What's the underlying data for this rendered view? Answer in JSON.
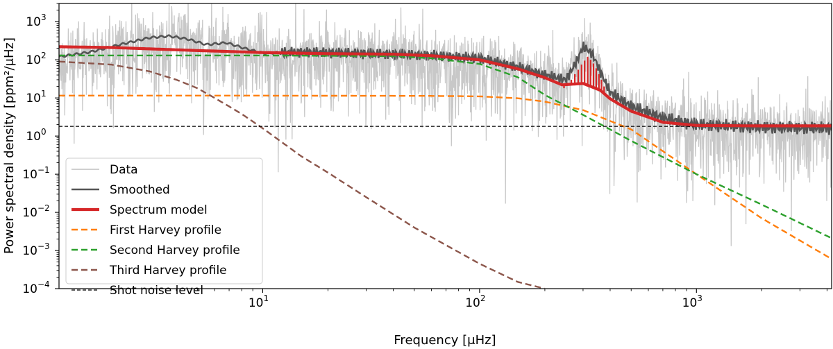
{
  "chart_data": {
    "type": "line",
    "xscale": "log",
    "yscale": "log",
    "xlim": [
      1.15,
      4200
    ],
    "ylim": [
      0.0001,
      3000
    ],
    "xlabel": "Frequency [μHz]",
    "ylabel": "Power spectral density [ppm²/μHz]",
    "x_tick_labels": [
      {
        "value": 10,
        "label": "10",
        "exp": "1"
      },
      {
        "value": 100,
        "label": "10",
        "exp": "2"
      },
      {
        "value": 1000,
        "label": "10",
        "exp": "3"
      }
    ],
    "y_tick_labels": [
      {
        "value": 1000,
        "label": "10",
        "exp": "3"
      },
      {
        "value": 100,
        "label": "10",
        "exp": "2"
      },
      {
        "value": 10,
        "label": "10",
        "exp": "1"
      },
      {
        "value": 1,
        "label": "10",
        "exp": "0"
      },
      {
        "value": 0.1,
        "label": "10",
        "exp": "−1"
      },
      {
        "value": 0.01,
        "label": "10",
        "exp": "−2"
      },
      {
        "value": 0.001,
        "label": "10",
        "exp": "−3"
      },
      {
        "value": 0.0001,
        "label": "10",
        "exp": "−4"
      }
    ],
    "grid": false,
    "legend_position": "lower-left",
    "series": [
      {
        "name": "Data",
        "color": "#c8c8c8",
        "style": "solid",
        "kind": "noisy_data"
      },
      {
        "name": "Smoothed",
        "color": "#555555",
        "style": "solid",
        "x": [
          1.15,
          1.6,
          2.2,
          3.0,
          3.7,
          4.5,
          5.5,
          6.8,
          8.5,
          10,
          15,
          25,
          40,
          60,
          100,
          150,
          200,
          250,
          280,
          300,
          330,
          360,
          400,
          500,
          700,
          1000,
          2000,
          4200
        ],
        "y": [
          120,
          160,
          250,
          380,
          420,
          350,
          250,
          280,
          190,
          150,
          160,
          150,
          140,
          130,
          110,
          65,
          40,
          30,
          90,
          220,
          150,
          50,
          14,
          6,
          3,
          2,
          1.7,
          1.6
        ]
      },
      {
        "name": "Spectrum model",
        "color": "#d62728",
        "style": "solid",
        "x": [
          1.15,
          2,
          5,
          10,
          20,
          40,
          60,
          100,
          150,
          200,
          240,
          300,
          360,
          400,
          500,
          700,
          1000,
          2000,
          4200
        ],
        "y": [
          220,
          210,
          175,
          155,
          145,
          140,
          128,
          100,
          58,
          34,
          22,
          24,
          16,
          9.5,
          4.5,
          2.3,
          1.9,
          1.85,
          1.85
        ],
        "peaks": {
          "x": [
            245,
            255,
            265,
            275,
            285,
            295,
            305,
            315,
            325,
            335,
            345,
            355,
            365,
            375
          ],
          "y": [
            18,
            25,
            30,
            42,
            55,
            75,
            95,
            120,
            100,
            80,
            60,
            42,
            30,
            20
          ]
        }
      },
      {
        "name": "First Harvey profile",
        "color": "#ff7f0e",
        "style": "dashed",
        "x": [
          1.15,
          10,
          60,
          100,
          150,
          200,
          300,
          500,
          1000,
          2000,
          4200
        ],
        "y": [
          11.5,
          11.5,
          11.3,
          11,
          9.8,
          8,
          4.8,
          1.5,
          0.1,
          0.007,
          0.0006
        ]
      },
      {
        "name": "Second Harvey profile",
        "color": "#2ca02c",
        "style": "dashed",
        "x": [
          1.15,
          10,
          40,
          60,
          100,
          150,
          200,
          300,
          500,
          1000,
          2000,
          4200
        ],
        "y": [
          130,
          130,
          125,
          110,
          78,
          35,
          12,
          3.6,
          0.75,
          0.1,
          0.016,
          0.0021
        ]
      },
      {
        "name": "Third Harvey profile",
        "color": "#8c564b",
        "style": "dashed",
        "x": [
          1.15,
          2,
          3,
          4,
          5,
          6,
          7,
          8,
          10,
          15,
          20,
          30,
          50,
          100,
          150,
          200
        ],
        "y": [
          90,
          75,
          50,
          30,
          18,
          10,
          6,
          3.8,
          1.6,
          0.3,
          0.11,
          0.025,
          0.004,
          0.00045,
          0.00015,
          0.0001
        ]
      },
      {
        "name": "Shot noise level",
        "color": "#000000",
        "style": "dashed",
        "x": [
          1.15,
          4200
        ],
        "y": [
          1.8,
          1.8
        ]
      }
    ]
  }
}
